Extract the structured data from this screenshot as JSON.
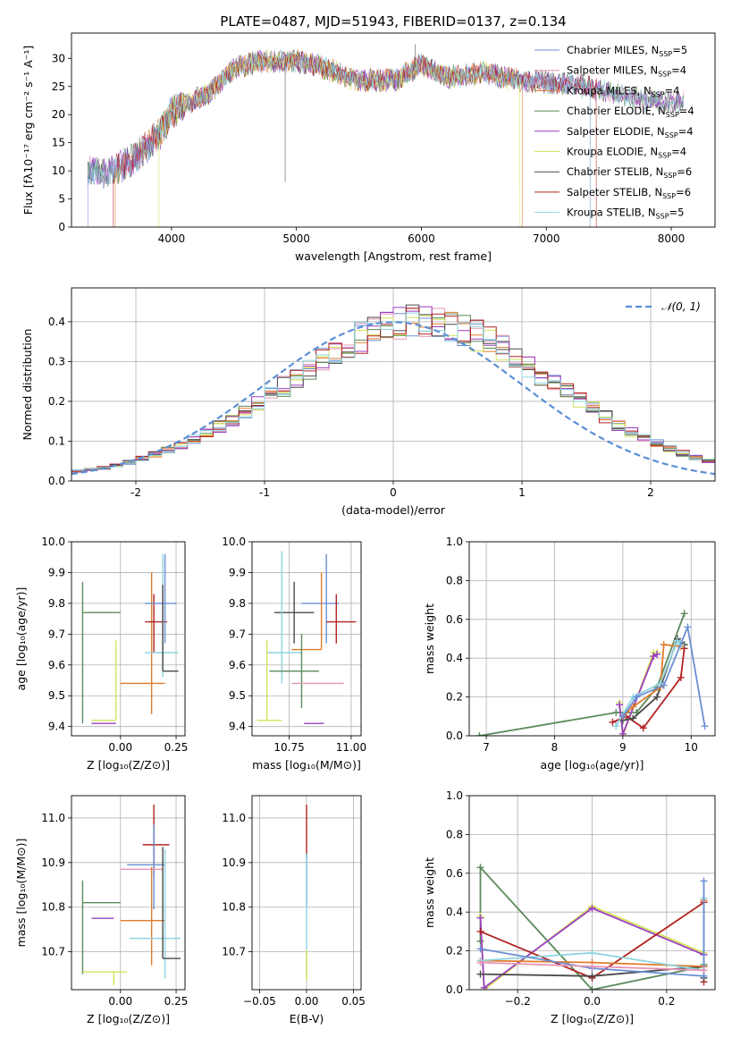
{
  "title": "PLATE=0487, MJD=51943, FIBERID=0137, z=0.134",
  "legend_fits": [
    {
      "name": "Chabrier MILES, N",
      "sub": "SSP",
      "n": "=5",
      "color": "#6a8fd4"
    },
    {
      "name": "Salpeter MILES, N",
      "sub": "SSP",
      "n": "=4",
      "color": "#e695b7"
    },
    {
      "name": "Kroupa MILES, N",
      "sub": "SSP",
      "n": "=4",
      "color": "#e07b2b"
    },
    {
      "name": "Chabrier ELODIE, N",
      "sub": "SSP",
      "n": "=4",
      "color": "#5b8a5b"
    },
    {
      "name": "Salpeter ELODIE, N",
      "sub": "SSP",
      "n": "=4",
      "color": "#9a3fc0"
    },
    {
      "name": "Kroupa ELODIE, N",
      "sub": "SSP",
      "n": "=4",
      "color": "#d4e35a"
    },
    {
      "name": "Chabrier STELIB, N",
      "sub": "SSP",
      "n": "=6",
      "color": "#4a4a4a"
    },
    {
      "name": "Salpeter STELIB, N",
      "sub": "SSP",
      "n": "=6",
      "color": "#b22222"
    },
    {
      "name": "Kroupa STELIB, N",
      "sub": "SSP",
      "n": "=5",
      "color": "#8fd4e0"
    }
  ],
  "chart_data": [
    {
      "id": "spectrum",
      "type": "line",
      "xlabel": "wavelength [Angstrom, rest frame]",
      "ylabel": "Flux [fλ10⁻¹⁷ erg cm⁻² s⁻¹ A⁻¹]",
      "xlim": [
        3200,
        8350
      ],
      "ylim": [
        0,
        34.5
      ],
      "xticks": [
        4000,
        5000,
        6000,
        7000,
        8000
      ],
      "yticks": [
        0,
        5,
        10,
        15,
        20,
        25,
        30
      ],
      "continuum": [
        [
          3330,
          10.2
        ],
        [
          3500,
          9.5
        ],
        [
          3700,
          12.2
        ],
        [
          3900,
          16.3
        ],
        [
          4000,
          20.5
        ],
        [
          4300,
          23.8
        ],
        [
          4500,
          28.2
        ],
        [
          4700,
          29.5
        ],
        [
          5000,
          29.5
        ],
        [
          5200,
          28.5
        ],
        [
          5500,
          26
        ],
        [
          5800,
          26.2
        ],
        [
          6000,
          29
        ],
        [
          6200,
          26.5
        ],
        [
          6500,
          27.5
        ],
        [
          6800,
          26
        ],
        [
          7200,
          25.5
        ],
        [
          7500,
          24
        ],
        [
          7800,
          22.5
        ],
        [
          8100,
          22.2
        ]
      ],
      "spikes": [
        [
          4910,
          8
        ],
        [
          5950,
          32.5
        ]
      ],
      "edges": [
        {
          "series": "Salpeter STELIB",
          "x0": 3535,
          "x1": 7400
        },
        {
          "series": "Kroupa ELODIE",
          "x0": 3900,
          "x1": 6790
        },
        {
          "series": "Kroupa MILES",
          "x0": 3550,
          "x1": 6810
        },
        {
          "series": "Chabrier MILES",
          "x0": 3330,
          "x1": 7350
        }
      ]
    },
    {
      "id": "residual_hist",
      "type": "histogram",
      "xlabel": "(data-model)/error",
      "ylabel": "Normed distribution",
      "xlim": [
        -2.5,
        2.5
      ],
      "ylim": [
        0,
        0.485
      ],
      "xticks": [
        -2,
        -1,
        0,
        1,
        2
      ],
      "yticks": [
        0.0,
        0.1,
        0.2,
        0.3,
        0.4
      ],
      "legend": "𝒩(0, 1)",
      "bin_width": 0.1,
      "base_series": [
        0.025,
        0.028,
        0.033,
        0.04,
        0.047,
        0.056,
        0.067,
        0.078,
        0.091,
        0.105,
        0.121,
        0.137,
        0.155,
        0.174,
        0.194,
        0.215,
        0.237,
        0.259,
        0.281,
        0.302,
        0.323,
        0.342,
        0.36,
        0.374,
        0.386,
        0.394,
        0.399,
        0.4,
        0.397,
        0.39,
        0.38,
        0.366,
        0.349,
        0.33,
        0.31,
        0.289,
        0.267,
        0.245,
        0.223,
        0.201,
        0.18,
        0.161,
        0.142,
        0.125,
        0.109,
        0.094,
        0.081,
        0.07,
        0.059,
        0.05
      ]
    },
    {
      "id": "age_vs_Z",
      "type": "errorbar",
      "xlabel": "Z [log₁₀(Z/Z⊙)]",
      "ylabel": "age  [log₁₀(age/yr)]",
      "xlim": [
        -0.22,
        0.29
      ],
      "ylim": [
        9.37,
        10.0
      ],
      "xticks": [
        0.0,
        0.25
      ],
      "xtick_labels": [
        "0.00",
        "0.25"
      ],
      "yticks": [
        9.4,
        9.5,
        9.6,
        9.7,
        9.8,
        9.9,
        10.0
      ],
      "points": [
        {
          "series": "Chabrier ELODIE",
          "x": -0.17,
          "y": 9.77,
          "xerr": [
            0.0,
            0.17
          ],
          "yerr": [
            0.36,
            0.1
          ]
        },
        {
          "series": "Salpeter ELODIE",
          "x": -0.02,
          "y": 9.41,
          "xerr": [
            0.11,
            0.0
          ],
          "yerr": [
            0.0,
            0.0
          ]
        },
        {
          "series": "Kroupa ELODIE",
          "x": -0.02,
          "y": 9.42,
          "xerr": [
            0.11,
            0.0
          ],
          "yerr": [
            0.0,
            0.26
          ]
        },
        {
          "series": "Kroupa MILES",
          "x": 0.14,
          "y": 9.54,
          "xerr": [
            0.14,
            0.06
          ],
          "yerr": [
            0.1,
            0.36
          ]
        },
        {
          "series": "Salpeter STELIB",
          "x": 0.15,
          "y": 9.74,
          "xerr": [
            0.04,
            0.06
          ],
          "yerr": [
            0.1,
            0.09
          ]
        },
        {
          "series": "Chabrier MILES",
          "x": 0.2,
          "y": 9.8,
          "xerr": [
            0.09,
            0.05
          ],
          "yerr": [
            0.13,
            0.16
          ]
        },
        {
          "series": "Kroupa STELIB",
          "x": 0.19,
          "y": 9.64,
          "xerr": [
            0.08,
            0.07
          ],
          "yerr": [
            0.08,
            0.32
          ]
        },
        {
          "series": "Chabrier STELIB",
          "x": 0.19,
          "y": 9.58,
          "xerr": [
            0.0,
            0.07
          ],
          "yerr": [
            0.0,
            0.28
          ]
        }
      ]
    },
    {
      "id": "age_vs_mass",
      "type": "errorbar",
      "xlabel": "mass [log₁₀(M/M⊙)]",
      "ylabel": "",
      "xlim": [
        10.6,
        11.04
      ],
      "ylim": [
        9.37,
        10.0
      ],
      "xticks": [
        10.75,
        11.0
      ],
      "xtick_labels": [
        "10.75",
        "11.00"
      ],
      "yticks": [
        9.4,
        9.5,
        9.6,
        9.7,
        9.8,
        9.9,
        10.0
      ],
      "points": [
        {
          "series": "Chabrier STELIB",
          "x": 10.77,
          "y": 9.77,
          "xerr": [
            0.08,
            0.08
          ],
          "yerr": [
            0.1,
            0.1
          ]
        },
        {
          "series": "Chabrier MILES",
          "x": 10.9,
          "y": 9.8,
          "xerr": [
            0.1,
            0.05
          ],
          "yerr": [
            0.13,
            0.16
          ]
        },
        {
          "series": "Salpeter STELIB",
          "x": 10.94,
          "y": 9.74,
          "xerr": [
            0.04,
            0.08
          ],
          "yerr": [
            0.07,
            0.09
          ]
        },
        {
          "series": "Kroupa MILES",
          "x": 10.88,
          "y": 9.65,
          "xerr": [
            0.12,
            0.0
          ],
          "yerr": [
            0.0,
            0.25
          ]
        },
        {
          "series": "Kroupa STELIB",
          "x": 10.72,
          "y": 9.64,
          "xerr": [
            0.06,
            0.08
          ],
          "yerr": [
            0.1,
            0.33
          ]
        },
        {
          "series": "Chabrier ELODIE",
          "x": 10.8,
          "y": 9.58,
          "xerr": [
            0.13,
            0.07
          ],
          "yerr": [
            0.12,
            0.12
          ]
        },
        {
          "series": "Salpeter MILES",
          "x": 10.88,
          "y": 9.54,
          "xerr": [
            0.12,
            0.09
          ],
          "yerr": [
            0.0,
            0.0
          ]
        },
        {
          "series": "Kroupa ELODIE",
          "x": 10.66,
          "y": 9.42,
          "xerr": [
            0.04,
            0.06
          ],
          "yerr": [
            0.0,
            0.26
          ]
        },
        {
          "series": "Salpeter ELODIE",
          "x": 10.85,
          "y": 9.41,
          "xerr": [
            0.04,
            0.04
          ],
          "yerr": [
            0.0,
            0.0
          ]
        }
      ]
    },
    {
      "id": "weight_vs_age",
      "type": "line",
      "xlabel": "age  [log₁₀(age/yr)]",
      "ylabel": "mass weight",
      "xlim": [
        6.75,
        10.35
      ],
      "ylim": [
        0,
        1.0
      ],
      "xticks": [
        7,
        8,
        9,
        10
      ],
      "yticks": [
        0.0,
        0.2,
        0.4,
        0.6,
        0.8,
        1.0
      ],
      "series": [
        {
          "name": "Chabrier ELODIE",
          "x": [
            6.9,
            8.9,
            9.2,
            9.5,
            9.9
          ],
          "y": [
            0.0,
            0.12,
            0.12,
            0.25,
            0.63
          ]
        },
        {
          "name": "Kroupa ELODIE",
          "x": [
            8.95,
            9.0,
            9.45,
            9.5
          ],
          "y": [
            0.17,
            0.0,
            0.43,
            0.43
          ]
        },
        {
          "name": "Salpeter ELODIE",
          "x": [
            8.95,
            9.0,
            9.45,
            9.5
          ],
          "y": [
            0.16,
            0.01,
            0.41,
            0.42
          ]
        },
        {
          "name": "Salpeter STELIB",
          "x": [
            8.85,
            9.05,
            9.3,
            9.85,
            9.9
          ],
          "y": [
            0.07,
            0.1,
            0.04,
            0.3,
            0.45
          ]
        },
        {
          "name": "Chabrier STELIB",
          "x": [
            9.0,
            9.15,
            9.5,
            9.8,
            9.9
          ],
          "y": [
            0.08,
            0.09,
            0.2,
            0.5,
            0.47
          ]
        },
        {
          "name": "Kroupa MILES",
          "x": [
            9.0,
            9.15,
            9.55,
            9.6,
            9.85
          ],
          "y": [
            0.1,
            0.15,
            0.25,
            0.47,
            0.46
          ]
        },
        {
          "name": "Kroupa STELIB",
          "x": [
            8.9,
            9.15,
            9.55,
            9.8,
            9.85
          ],
          "y": [
            0.05,
            0.2,
            0.27,
            0.49,
            0.47
          ]
        },
        {
          "name": "Chabrier MILES",
          "x": [
            9.0,
            9.2,
            9.6,
            9.95,
            10.2
          ],
          "y": [
            0.1,
            0.2,
            0.26,
            0.56,
            0.05
          ]
        }
      ]
    },
    {
      "id": "mass_vs_Z",
      "type": "errorbar",
      "xlabel": "Z [log₁₀(Z/Z⊙)]",
      "ylabel": "mass [log₁₀(M/M⊙)]",
      "xlim": [
        -0.22,
        0.29
      ],
      "ylim": [
        10.615,
        11.05
      ],
      "xticks": [
        0.0,
        0.25
      ],
      "xtick_labels": [
        "0.00",
        "0.25"
      ],
      "yticks": [
        10.7,
        10.8,
        10.9,
        11.0
      ],
      "points": [
        {
          "series": "Salpeter STELIB",
          "x": 0.15,
          "y": 10.94,
          "xerr": [
            0.05,
            0.07
          ],
          "yerr": [
            0.07,
            0.09
          ]
        },
        {
          "series": "Chabrier MILES",
          "x": 0.15,
          "y": 10.895,
          "xerr": [
            0.12,
            0.05
          ],
          "yerr": [
            0.1,
            0.09
          ]
        },
        {
          "series": "Salpeter MILES",
          "x": 0.05,
          "y": 10.885,
          "xerr": [
            0.05,
            0.14
          ],
          "yerr": [
            0.0,
            0.0
          ]
        },
        {
          "series": "Chabrier ELODIE",
          "x": -0.17,
          "y": 10.81,
          "xerr": [
            0.0,
            0.17
          ],
          "yerr": [
            0.16,
            0.05
          ]
        },
        {
          "series": "Salpeter ELODIE",
          "x": -0.03,
          "y": 10.775,
          "xerr": [
            0.1,
            0.0
          ],
          "yerr": [
            0.0,
            0.0
          ]
        },
        {
          "series": "Kroupa MILES",
          "x": 0.14,
          "y": 10.77,
          "xerr": [
            0.14,
            0.06
          ],
          "yerr": [
            0.1,
            0.12
          ]
        },
        {
          "series": "Kroupa STELIB",
          "x": 0.2,
          "y": 10.73,
          "xerr": [
            0.16,
            0.07
          ],
          "yerr": [
            0.09,
            0.2
          ]
        },
        {
          "series": "Chabrier STELIB",
          "x": 0.19,
          "y": 10.685,
          "xerr": [
            0.0,
            0.08
          ],
          "yerr": [
            0.0,
            0.25
          ]
        },
        {
          "series": "Kroupa ELODIE",
          "x": -0.03,
          "y": 10.655,
          "xerr": [
            0.14,
            0.06
          ],
          "yerr": [
            0.03,
            0.0
          ]
        }
      ]
    },
    {
      "id": "mass_vs_ebv",
      "type": "errorbar",
      "xlabel": "E(B-V)",
      "ylabel": "",
      "xlim": [
        -0.058,
        0.058
      ],
      "ylim": [
        10.615,
        11.05
      ],
      "xticks": [
        -0.05,
        0.0,
        0.05
      ],
      "xtick_labels": [
        "−0.05",
        "0.00",
        "0.05"
      ],
      "yticks": [
        10.7,
        10.8,
        10.9,
        11.0
      ],
      "points": [
        {
          "series": "Salpeter STELIB",
          "x": 0.0,
          "y": 10.94,
          "xerr": [
            0,
            0
          ],
          "yerr": [
            0.03,
            0.09
          ]
        },
        {
          "series": "Chabrier MILES",
          "x": 0.0,
          "y": 10.9,
          "xerr": [
            0,
            0
          ],
          "yerr": [
            0.1,
            0.02
          ]
        },
        {
          "series": "Kroupa STELIB",
          "x": 0.0,
          "y": 10.73,
          "xerr": [
            0,
            0
          ],
          "yerr": [
            0.09,
            0.19
          ]
        },
        {
          "series": "Kroupa ELODIE",
          "x": 0.0,
          "y": 10.655,
          "xerr": [
            0,
            0
          ],
          "yerr": [
            0.02,
            0.05
          ]
        }
      ]
    },
    {
      "id": "weight_vs_Z",
      "type": "line",
      "xlabel": "Z [log₁₀(Z/Z⊙)]",
      "ylabel": "mass weight",
      "xlim": [
        -0.33,
        0.33
      ],
      "ylim": [
        0,
        1.0
      ],
      "xticks": [
        -0.2,
        0.0,
        0.2
      ],
      "xtick_labels": [
        "−0.2",
        "0.0",
        "0.2"
      ],
      "yticks": [
        0.0,
        0.2,
        0.4,
        0.6,
        0.8,
        1.0
      ],
      "series": [
        {
          "name": "Chabrier ELODIE",
          "x": [
            -0.3,
            -0.3,
            0.0,
            0.3,
            0.3
          ],
          "y": [
            0.25,
            0.63,
            0.0,
            0.12,
            0.13
          ]
        },
        {
          "name": "Kroupa ELODIE",
          "x": [
            -0.3,
            -0.29,
            0.0,
            0.3
          ],
          "y": [
            0.38,
            0.0,
            0.43,
            0.19
          ]
        },
        {
          "name": "Salpeter ELODIE",
          "x": [
            -0.3,
            -0.29,
            0.0,
            0.3
          ],
          "y": [
            0.37,
            0.01,
            0.42,
            0.18
          ]
        },
        {
          "name": "Salpeter STELIB",
          "x": [
            -0.3,
            0.0,
            0.3,
            0.3
          ],
          "y": [
            0.3,
            0.06,
            0.45,
            0.04
          ]
        },
        {
          "name": "Chabrier STELIB",
          "x": [
            -0.3,
            0.0,
            0.3,
            0.3
          ],
          "y": [
            0.08,
            0.07,
            0.12,
            0.06
          ]
        },
        {
          "name": "Kroupa MILES",
          "x": [
            -0.3,
            0.0,
            0.3,
            0.3
          ],
          "y": [
            0.15,
            0.14,
            0.12,
            0.46
          ]
        },
        {
          "name": "Kroupa STELIB",
          "x": [
            -0.3,
            0.0,
            0.3,
            0.3
          ],
          "y": [
            0.15,
            0.19,
            0.1,
            0.47
          ]
        },
        {
          "name": "Chabrier MILES",
          "x": [
            -0.3,
            0.0,
            0.3,
            0.3
          ],
          "y": [
            0.21,
            0.11,
            0.07,
            0.56
          ]
        },
        {
          "name": "Salpeter MILES",
          "x": [
            -0.3,
            0.0,
            0.3
          ],
          "y": [
            0.14,
            0.12,
            0.1
          ]
        }
      ]
    }
  ]
}
